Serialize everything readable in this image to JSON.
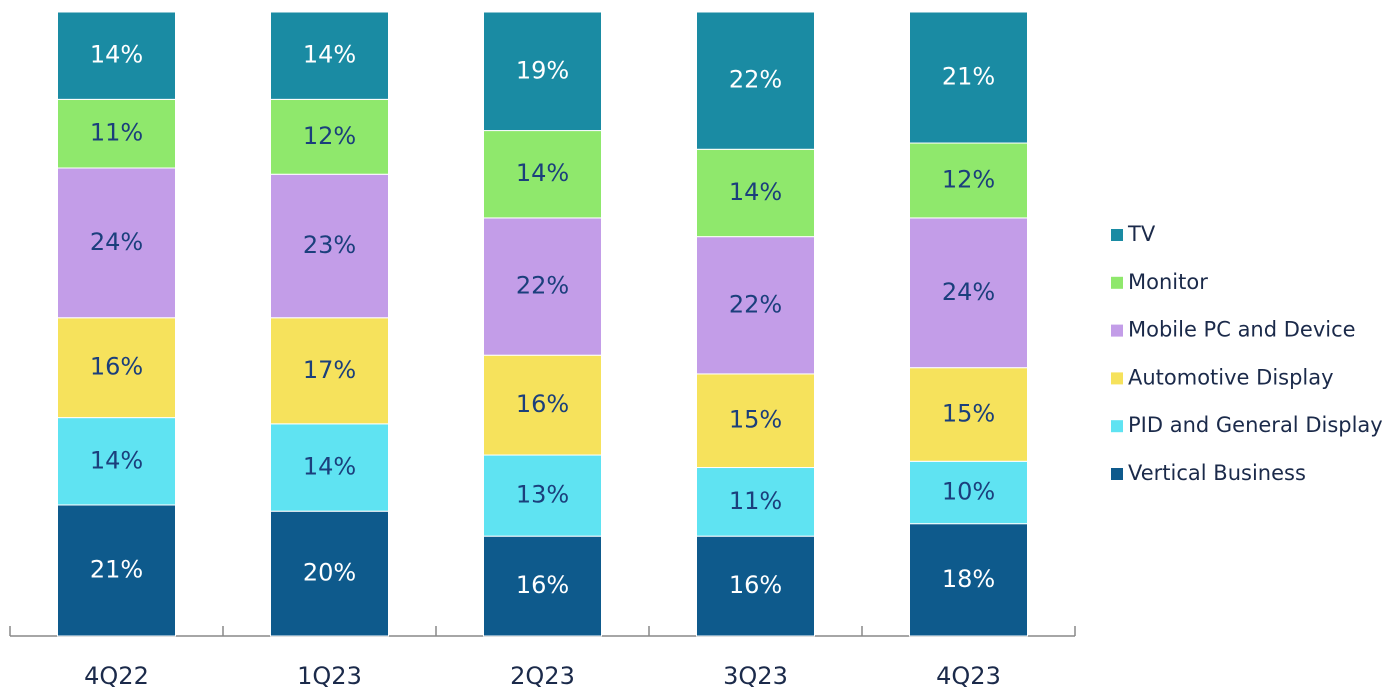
{
  "chart_data": {
    "type": "stacked-bar",
    "categories": [
      "4Q22",
      "1Q23",
      "2Q23",
      "3Q23",
      "4Q23"
    ],
    "series": [
      {
        "name": "Vertical Business",
        "color": "#0e5a8c",
        "values": [
          21,
          20,
          16,
          16,
          18
        ],
        "value_labels": [
          "21%",
          "20%",
          "16%",
          "16%",
          "18%"
        ]
      },
      {
        "name": "PID and General Display",
        "color": "#5fe3f2",
        "values": [
          14,
          14,
          13,
          11,
          10
        ],
        "value_labels": [
          "14%",
          "14%",
          "13%",
          "11%",
          "10%"
        ]
      },
      {
        "name": "Automotive Display",
        "color": "#f6e25c",
        "values": [
          16,
          17,
          16,
          15,
          15
        ],
        "value_labels": [
          "16%",
          "17%",
          "16%",
          "15%",
          "15%"
        ]
      },
      {
        "name": "Mobile PC and Device",
        "color": "#c39de8",
        "values": [
          24,
          23,
          22,
          22,
          24
        ],
        "value_labels": [
          "24%",
          "23%",
          "22%",
          "22%",
          "24%"
        ]
      },
      {
        "name": "Monitor",
        "color": "#8fe86c",
        "values": [
          11,
          12,
          14,
          14,
          12
        ],
        "value_labels": [
          "11%",
          "12%",
          "14%",
          "14%",
          "12%"
        ]
      },
      {
        "name": "TV",
        "color": "#1a8ba3",
        "values": [
          14,
          14,
          19,
          22,
          21
        ],
        "value_labels": [
          "14%",
          "14%",
          "19%",
          "22%",
          "21%"
        ]
      }
    ],
    "legend": "right"
  }
}
